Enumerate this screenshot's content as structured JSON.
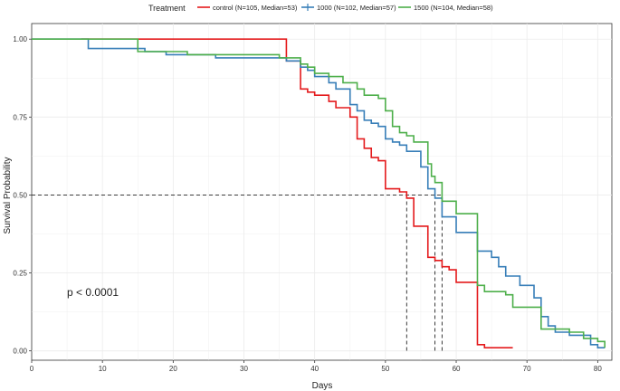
{
  "chart_data": {
    "type": "line",
    "subtype": "kaplan-meier-step",
    "xlabel": "Days",
    "ylabel": "Survival Probability",
    "xlim": [
      0,
      82
    ],
    "ylim": [
      0,
      1
    ],
    "x_ticks": [
      0,
      10,
      20,
      30,
      40,
      50,
      60,
      70,
      80
    ],
    "y_ticks": [
      0,
      0.25,
      0.5,
      0.75,
      1
    ],
    "y_tick_labels": [
      "0.00",
      "0.25",
      "0.50",
      "0.75",
      "1.00"
    ],
    "grid": true,
    "legend": {
      "title": "Treatment",
      "placement": "top",
      "entries": [
        "control (N=105, Median=53)",
        "1000 (N=102, Median=57)",
        "1500 (N=104, Median=58)"
      ]
    },
    "annotation": "p < 0.0001",
    "median_line": {
      "y": 0.5,
      "medians": [
        53,
        57,
        58
      ],
      "color": "#222222"
    },
    "series": [
      {
        "key": "control",
        "color": "#E41A1C",
        "points": [
          [
            7,
            1.0
          ],
          [
            36,
            1.0
          ],
          [
            36,
            0.93
          ],
          [
            38,
            0.84
          ],
          [
            39,
            0.83
          ],
          [
            40,
            0.82
          ],
          [
            42,
            0.8
          ],
          [
            43,
            0.78
          ],
          [
            45,
            0.75
          ],
          [
            46,
            0.68
          ],
          [
            47,
            0.65
          ],
          [
            48,
            0.62
          ],
          [
            49,
            0.61
          ],
          [
            50,
            0.52
          ],
          [
            52,
            0.51
          ],
          [
            53,
            0.49
          ],
          [
            54,
            0.4
          ],
          [
            56,
            0.3
          ],
          [
            57,
            0.29
          ],
          [
            58,
            0.27
          ],
          [
            59,
            0.26
          ],
          [
            60,
            0.22
          ],
          [
            62,
            0.22
          ],
          [
            63,
            0.02
          ],
          [
            64,
            0.01
          ],
          [
            68,
            0.01
          ]
        ]
      },
      {
        "key": "1000",
        "color": "#377EB8",
        "points": [
          [
            0,
            1.0
          ],
          [
            7,
            1.0
          ],
          [
            8,
            0.97
          ],
          [
            14,
            0.97
          ],
          [
            16,
            0.96
          ],
          [
            19,
            0.95
          ],
          [
            22,
            0.95
          ],
          [
            26,
            0.94
          ],
          [
            33,
            0.94
          ],
          [
            36,
            0.93
          ],
          [
            38,
            0.91
          ],
          [
            39,
            0.9
          ],
          [
            40,
            0.88
          ],
          [
            42,
            0.86
          ],
          [
            43,
            0.84
          ],
          [
            45,
            0.79
          ],
          [
            46,
            0.77
          ],
          [
            47,
            0.74
          ],
          [
            48,
            0.73
          ],
          [
            49,
            0.72
          ],
          [
            50,
            0.68
          ],
          [
            51,
            0.67
          ],
          [
            52,
            0.66
          ],
          [
            53,
            0.64
          ],
          [
            55,
            0.59
          ],
          [
            56,
            0.52
          ],
          [
            57,
            0.49
          ],
          [
            58,
            0.43
          ],
          [
            60,
            0.38
          ],
          [
            62,
            0.38
          ],
          [
            63,
            0.32
          ],
          [
            65,
            0.3
          ],
          [
            66,
            0.27
          ],
          [
            67,
            0.24
          ],
          [
            69,
            0.21
          ],
          [
            71,
            0.17
          ],
          [
            72,
            0.11
          ],
          [
            73,
            0.08
          ],
          [
            74,
            0.06
          ],
          [
            76,
            0.05
          ],
          [
            78,
            0.05
          ],
          [
            79,
            0.02
          ],
          [
            80,
            0.01
          ],
          [
            81,
            0.01
          ]
        ]
      },
      {
        "key": "1500",
        "color": "#4DAF4A",
        "points": [
          [
            0,
            1.0
          ],
          [
            15,
            1.0
          ],
          [
            15,
            0.96
          ],
          [
            22,
            0.96
          ],
          [
            22,
            0.95
          ],
          [
            31,
            0.95
          ],
          [
            35,
            0.94
          ],
          [
            38,
            0.92
          ],
          [
            39,
            0.91
          ],
          [
            40,
            0.89
          ],
          [
            42,
            0.88
          ],
          [
            44,
            0.86
          ],
          [
            46,
            0.84
          ],
          [
            47,
            0.82
          ],
          [
            49,
            0.81
          ],
          [
            50,
            0.77
          ],
          [
            51,
            0.72
          ],
          [
            52,
            0.7
          ],
          [
            53,
            0.69
          ],
          [
            54,
            0.67
          ],
          [
            56,
            0.6
          ],
          [
            56.5,
            0.56
          ],
          [
            57,
            0.54
          ],
          [
            58,
            0.48
          ],
          [
            60,
            0.44
          ],
          [
            63,
            0.21
          ],
          [
            64,
            0.19
          ],
          [
            67,
            0.18
          ],
          [
            68,
            0.14
          ],
          [
            72,
            0.07
          ],
          [
            74,
            0.07
          ],
          [
            76,
            0.06
          ],
          [
            78,
            0.04
          ],
          [
            80,
            0.03
          ],
          [
            81,
            0.01
          ]
        ]
      }
    ]
  }
}
